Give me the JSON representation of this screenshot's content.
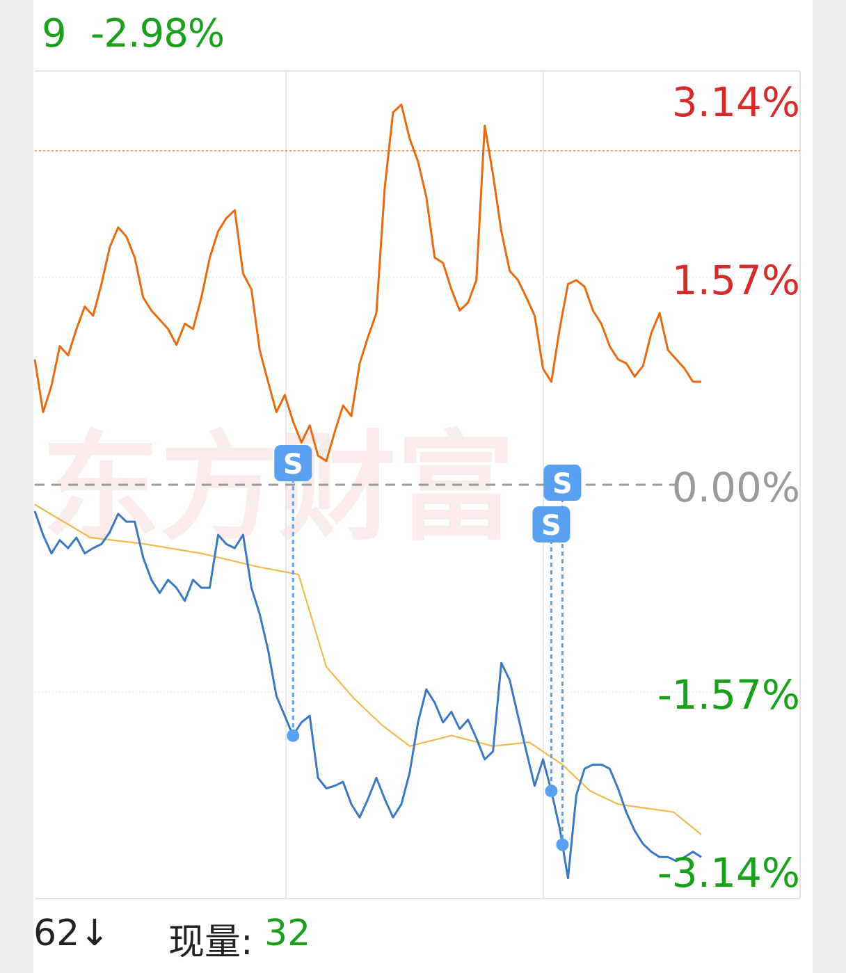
{
  "header": {
    "left_value": "9",
    "change_pct": "-2.98%"
  },
  "footer": {
    "left_value": "62↓",
    "volume_label": "现量:",
    "volume_value": "32"
  },
  "colors": {
    "upper_line": "#e86a10",
    "lower_line": "#3a78c2",
    "avg_line": "#f0b850",
    "up": "#d62b2b",
    "down": "#1aa01a",
    "zero": "#9a9a9a",
    "marker": "#5aa0f0"
  },
  "chart_data": [
    {
      "type": "line",
      "description_ref": "upper relative-change trace (orange)",
      "ylim": [
        -3.14,
        3.14
      ],
      "y_tick_labels": [
        "3.14%",
        "1.57%"
      ],
      "reference_line_pct": 2.53,
      "series": [
        {
          "color": "#e86a10",
          "x": [
            0,
            3,
            6,
            9,
            12,
            15,
            18,
            21,
            24,
            27,
            30,
            33,
            36,
            39,
            42,
            45,
            48,
            51,
            54,
            57,
            60,
            63,
            66,
            69,
            72,
            75,
            78,
            81,
            84,
            87,
            90,
            93,
            96,
            99,
            102,
            105,
            108,
            111,
            114,
            117,
            120,
            123,
            126,
            129,
            132,
            135,
            138,
            141,
            144,
            147,
            150,
            153,
            156,
            159,
            162,
            165,
            168,
            171,
            174,
            177,
            180,
            183,
            186,
            189,
            192,
            195,
            198,
            201,
            204,
            207,
            210,
            213,
            216,
            219,
            222,
            225,
            228,
            231,
            234,
            237,
            240
          ],
          "values": [
            0.95,
            0.55,
            0.75,
            1.05,
            0.98,
            1.18,
            1.35,
            1.28,
            1.52,
            1.8,
            1.95,
            1.88,
            1.72,
            1.42,
            1.32,
            1.25,
            1.18,
            1.06,
            1.22,
            1.18,
            1.42,
            1.72,
            1.92,
            2.02,
            2.08,
            1.6,
            1.48,
            1.02,
            0.78,
            0.55,
            0.68,
            0.48,
            0.32,
            0.45,
            0.22,
            0.18,
            0.4,
            0.6,
            0.52,
            0.92,
            1.12,
            1.3,
            2.25,
            2.82,
            2.88,
            2.62,
            2.45,
            2.18,
            1.72,
            1.68,
            1.48,
            1.32,
            1.38,
            1.55,
            2.72,
            2.35,
            1.92,
            1.62,
            1.55,
            1.42,
            1.28,
            0.88,
            0.78,
            1.18,
            1.52,
            1.55,
            1.5,
            1.32,
            1.22,
            1.05,
            0.95,
            0.92,
            0.82,
            0.9,
            1.15,
            1.3,
            1.02,
            0.95,
            0.88,
            0.78,
            0.78
          ]
        }
      ]
    },
    {
      "type": "line",
      "description_ref": "lower relative-change trace (blue) with average line (yellow)",
      "ylim": [
        -3.14,
        3.14
      ],
      "y_tick_labels": [
        "0.00%",
        "-1.57%",
        "-3.14%"
      ],
      "series": [
        {
          "color": "#3a78c2",
          "x": [
            0,
            3,
            6,
            9,
            12,
            15,
            18,
            21,
            24,
            27,
            30,
            33,
            36,
            39,
            42,
            45,
            48,
            51,
            54,
            57,
            60,
            63,
            66,
            69,
            72,
            75,
            78,
            81,
            84,
            87,
            90,
            93,
            96,
            99,
            102,
            105,
            108,
            111,
            114,
            117,
            120,
            123,
            126,
            129,
            132,
            135,
            138,
            141,
            144,
            147,
            150,
            153,
            156,
            159,
            162,
            165,
            168,
            171,
            174,
            177,
            180,
            183,
            186,
            189,
            192,
            195,
            198,
            201,
            204,
            207,
            210,
            213,
            216,
            219,
            222,
            225,
            228,
            231,
            234,
            237,
            240
          ],
          "values": [
            -0.2,
            -0.38,
            -0.52,
            -0.42,
            -0.48,
            -0.4,
            -0.52,
            -0.48,
            -0.45,
            -0.36,
            -0.22,
            -0.28,
            -0.28,
            -0.55,
            -0.72,
            -0.82,
            -0.72,
            -0.78,
            -0.88,
            -0.72,
            -0.78,
            -0.78,
            -0.38,
            -0.45,
            -0.48,
            -0.38,
            -0.78,
            -0.98,
            -1.25,
            -1.6,
            -1.75,
            -1.9,
            -1.8,
            -1.75,
            -2.22,
            -2.3,
            -2.28,
            -2.25,
            -2.42,
            -2.52,
            -2.38,
            -2.22,
            -2.38,
            -2.52,
            -2.42,
            -2.18,
            -1.8,
            -1.55,
            -1.65,
            -1.8,
            -1.72,
            -1.85,
            -1.78,
            -1.92,
            -2.08,
            -2.02,
            -1.35,
            -1.48,
            -1.75,
            -2.02,
            -2.28,
            -2.08,
            -2.32,
            -2.6,
            -2.98,
            -2.35,
            -2.15,
            -2.12,
            -2.12,
            -2.15,
            -2.3,
            -2.48,
            -2.62,
            -2.72,
            -2.78,
            -2.82,
            -2.82,
            -2.85,
            -2.82,
            -2.78,
            -2.82
          ]
        },
        {
          "color": "#f0b850",
          "x": [
            0,
            20,
            40,
            60,
            80,
            95,
            105,
            115,
            125,
            135,
            150,
            165,
            178,
            190,
            200,
            210,
            220,
            230,
            240
          ],
          "values": [
            -0.15,
            -0.4,
            -0.45,
            -0.52,
            -0.62,
            -0.68,
            -1.38,
            -1.62,
            -1.82,
            -1.98,
            -1.9,
            -1.98,
            -1.95,
            -2.12,
            -2.32,
            -2.42,
            -2.45,
            -2.48,
            -2.65
          ]
        }
      ],
      "signals": [
        {
          "label": "S",
          "x": 93
        },
        {
          "label": "S",
          "x": 186
        },
        {
          "label": "S",
          "x": 190
        }
      ]
    }
  ],
  "axis_labels": {
    "top": "3.14%",
    "upper_mid": "1.57%",
    "zero": "0.00%",
    "lower_mid": "-1.57%",
    "bottom": "-3.14%"
  },
  "watermark": "东方财富"
}
